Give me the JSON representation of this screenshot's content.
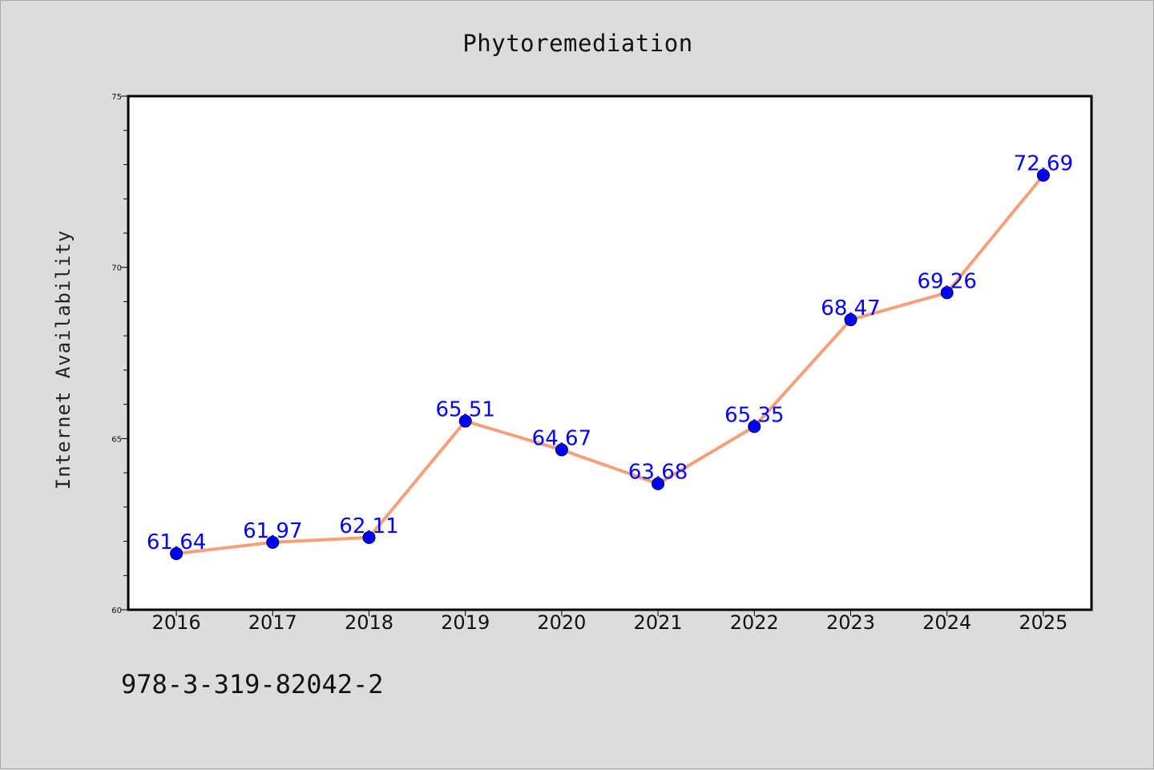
{
  "chart_data": {
    "type": "line",
    "title": "Phytoremediation",
    "xlabel": "",
    "ylabel": "Internet Availability",
    "categories": [
      "2016",
      "2017",
      "2018",
      "2019",
      "2020",
      "2021",
      "2022",
      "2023",
      "2024",
      "2025"
    ],
    "series": [
      {
        "values": [
          61.64,
          61.97,
          62.11,
          65.51,
          64.67,
          63.68,
          65.35,
          68.47,
          69.26,
          72.69
        ],
        "data_labels": [
          "61.64",
          "61.97",
          "62.11",
          "65.51",
          "64.67",
          "63.68",
          "65.35",
          "68.47",
          "69.26",
          "72.69"
        ],
        "line_color": "#f4a07a",
        "marker_color": "#0000ff",
        "label_color": "#0000ff"
      }
    ],
    "ylim": [
      60,
      75
    ],
    "yticks": [
      "60",
      "65",
      "70",
      "75"
    ],
    "grid": false,
    "legend": "none"
  },
  "footnote": "978-3-319-82042-2",
  "colors": {
    "figure_background": "#dcdcdc",
    "plot_background": "#ffffff",
    "line": "#f4a07a",
    "marker": "#0000ff",
    "data_label": "#0000ff"
  }
}
